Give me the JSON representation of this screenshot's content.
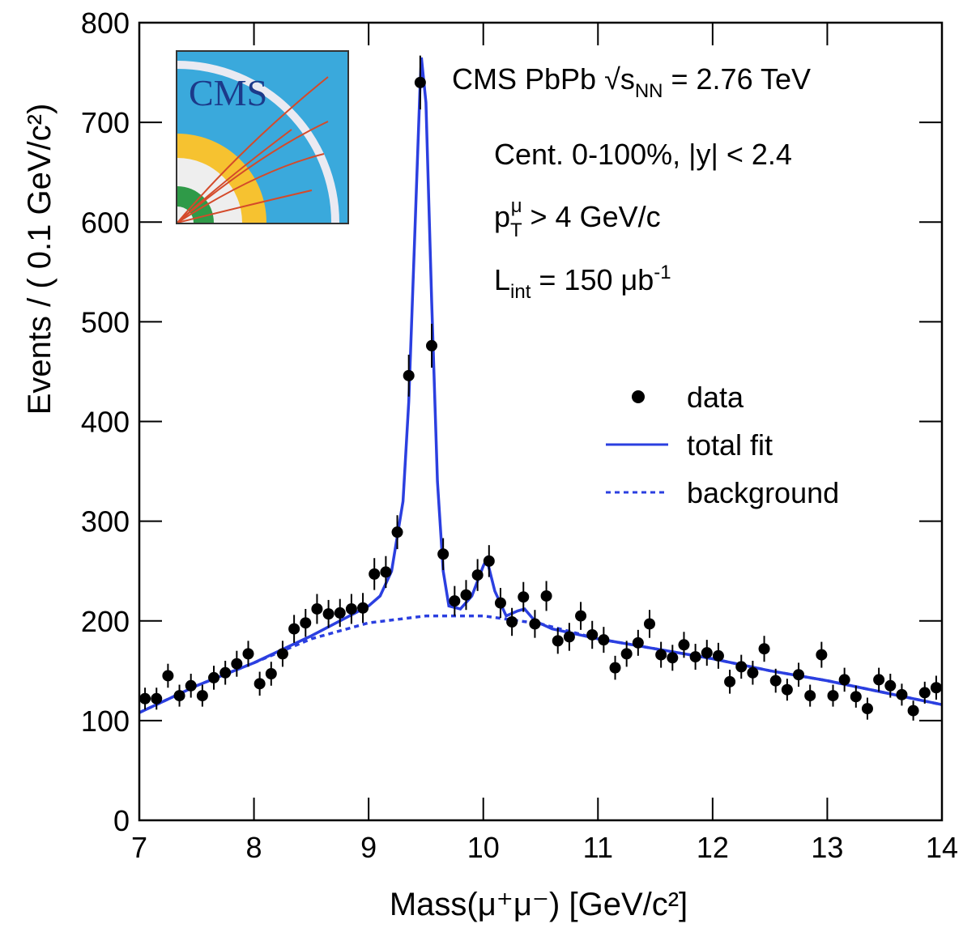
{
  "chart_data": {
    "type": "scatter",
    "x_label": "Mass(μ⁺μ⁻) [GeV/c²]",
    "y_label": "Events / ( 0.1 GeV/c²)",
    "xlim": [
      7,
      14
    ],
    "ylim": [
      0,
      800
    ],
    "xticks": [
      7,
      8,
      9,
      10,
      11,
      12,
      13,
      14
    ],
    "yticks": [
      0,
      100,
      200,
      300,
      400,
      500,
      600,
      700,
      800
    ],
    "logo": {
      "text": "CMS"
    },
    "annotations": [
      [
        "CMS PbPb √s",
        "NN",
        " = 2.76 TeV"
      ],
      [
        "Cent. 0-100%, |y| < 2.4"
      ],
      [
        "p",
        "T",
        "μ",
        " > 4 GeV/c"
      ],
      [
        "L",
        "int",
        " = 150 μb",
        "-1"
      ]
    ],
    "legend": "right",
    "series": [
      {
        "name": "data",
        "style": "points",
        "color": "#000000",
        "x": [
          7.05,
          7.15,
          7.25,
          7.35,
          7.45,
          7.55,
          7.65,
          7.75,
          7.85,
          7.95,
          8.05,
          8.15,
          8.25,
          8.35,
          8.45,
          8.55,
          8.65,
          8.75,
          8.85,
          8.95,
          9.05,
          9.15,
          9.25,
          9.35,
          9.45,
          9.55,
          9.65,
          9.75,
          9.85,
          9.95,
          10.05,
          10.15,
          10.25,
          10.35,
          10.45,
          10.55,
          10.65,
          10.75,
          10.85,
          10.95,
          11.05,
          11.15,
          11.25,
          11.35,
          11.45,
          11.55,
          11.65,
          11.75,
          11.85,
          11.95,
          12.05,
          12.15,
          12.25,
          12.35,
          12.45,
          12.55,
          12.65,
          12.75,
          12.85,
          12.95,
          13.05,
          13.15,
          13.25,
          13.35,
          13.45,
          13.55,
          13.65,
          13.75,
          13.85,
          13.95
        ],
        "values": [
          122,
          122,
          145,
          125,
          135,
          125,
          143,
          148,
          157,
          167,
          137,
          147,
          167,
          192,
          198,
          212,
          207,
          208,
          212,
          213,
          247,
          249,
          289,
          446,
          740,
          476,
          267,
          220,
          226,
          246,
          260,
          218,
          199,
          224,
          197,
          225,
          180,
          184,
          205,
          186,
          181,
          153,
          167,
          178,
          197,
          166,
          163,
          176,
          164,
          168,
          165,
          139,
          154,
          148,
          172,
          140,
          131,
          146,
          125,
          166,
          125,
          141,
          124,
          112,
          141,
          135,
          126,
          110,
          128,
          133
        ],
        "errors": [
          11,
          11,
          12,
          11,
          12,
          11,
          12,
          12,
          13,
          13,
          12,
          12,
          13,
          14,
          14,
          15,
          14,
          14,
          15,
          15,
          16,
          16,
          17,
          21,
          27,
          22,
          16,
          15,
          15,
          16,
          16,
          15,
          14,
          15,
          14,
          15,
          13,
          14,
          14,
          14,
          13,
          12,
          13,
          13,
          14,
          13,
          13,
          13,
          13,
          13,
          13,
          12,
          12,
          12,
          13,
          12,
          11,
          12,
          11,
          13,
          11,
          12,
          11,
          11,
          12,
          12,
          11,
          10,
          11,
          12
        ]
      },
      {
        "name": "total fit",
        "style": "solid",
        "color": "#2b3fe0",
        "x": [
          7,
          7.5,
          8,
          8.5,
          9,
          9.1,
          9.2,
          9.3,
          9.35,
          9.4,
          9.45,
          9.46,
          9.5,
          9.55,
          9.6,
          9.65,
          9.7,
          9.8,
          9.9,
          10,
          10.03,
          10.1,
          10.2,
          10.3,
          10.36,
          10.45,
          10.6,
          11,
          11.5,
          12,
          12.5,
          13,
          13.5,
          14
        ],
        "values": [
          108,
          135,
          158,
          185,
          215,
          225,
          250,
          320,
          420,
          580,
          740,
          765,
          720,
          520,
          340,
          250,
          215,
          212,
          225,
          255,
          262,
          230,
          205,
          210,
          212,
          200,
          192,
          182,
          172,
          162,
          150,
          140,
          128,
          116
        ]
      },
      {
        "name": "background",
        "style": "dashed",
        "color": "#2b3fe0",
        "x": [
          7,
          7.5,
          8,
          8.5,
          9,
          9.5,
          10,
          10.5,
          11,
          11.5,
          12,
          12.5,
          13,
          13.5,
          14
        ],
        "values": [
          108,
          135,
          158,
          182,
          198,
          205,
          205,
          197,
          182,
          172,
          162,
          150,
          140,
          128,
          116
        ]
      }
    ]
  }
}
